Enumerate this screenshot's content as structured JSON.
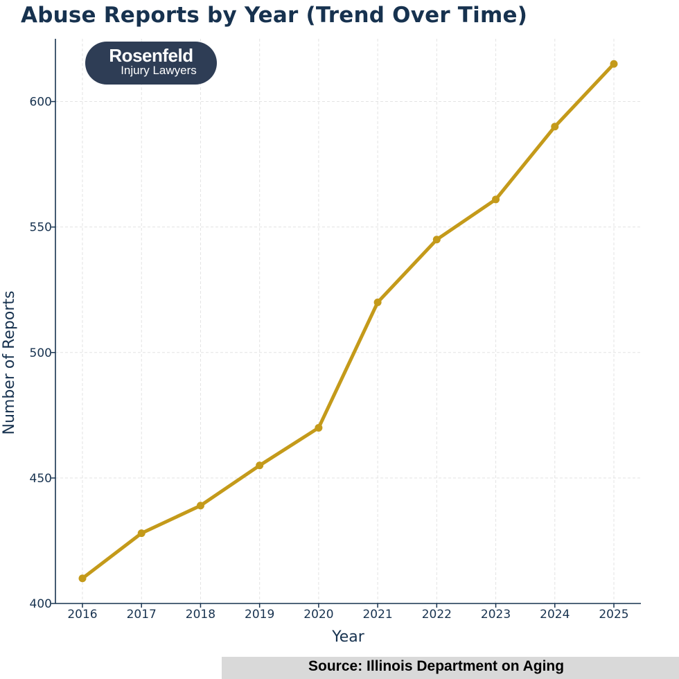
{
  "title": "Abuse Reports by Year (Trend Over Time)",
  "logo": {
    "name": "Rosenfeld",
    "tagline": "Injury Lawyers"
  },
  "source": "Source: Illinois Department on Aging",
  "colors": {
    "line": "#c49a1a",
    "axis": "#17324f",
    "grid": "#e3e3e3",
    "logo_bg": "#2e3d55",
    "source_bg": "#d9d9d9"
  },
  "chart_data": {
    "type": "line",
    "title": "Abuse Reports by Year (Trend Over Time)",
    "xlabel": "Year",
    "ylabel": "Number of Reports",
    "x": [
      "2016",
      "2017",
      "2018",
      "2019",
      "2020",
      "2021",
      "2022",
      "2023",
      "2024",
      "2025"
    ],
    "series": [
      {
        "values": [
          410,
          428,
          439,
          455,
          470,
          520,
          545,
          561,
          590,
          615
        ]
      }
    ],
    "ylim": [
      400,
      625
    ],
    "yticks": [
      400,
      450,
      500,
      550,
      600
    ],
    "grid": true,
    "markers": true
  }
}
